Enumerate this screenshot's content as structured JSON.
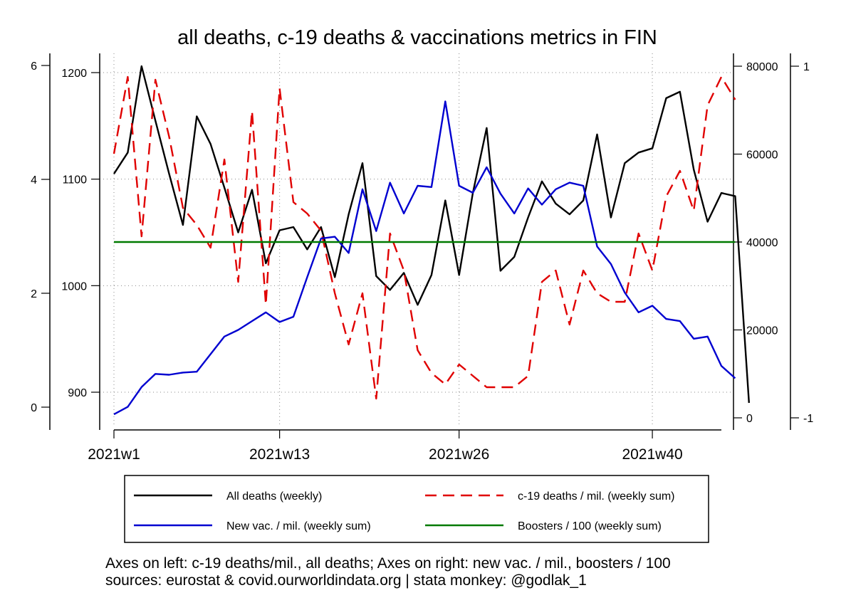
{
  "chart_data": {
    "type": "line",
    "title": "all deaths, c-19 deaths & vaccinations metrics in FIN",
    "x": {
      "start_week": 1,
      "end_week": 45,
      "tick_weeks": [
        1,
        13,
        26,
        40
      ],
      "tick_labels": [
        "2021w1",
        "2021w13",
        "2021w26",
        "2021w40"
      ]
    },
    "axes": {
      "left_outer": {
        "ticks": [
          0,
          2,
          4,
          6
        ],
        "range": [
          0,
          6
        ],
        "note": "c-19 deaths/mil."
      },
      "left_inner": {
        "ticks": [
          900,
          1000,
          1100,
          1200
        ],
        "range": [
          882,
          1208
        ],
        "note": "all deaths"
      },
      "right_inner": {
        "ticks": [
          0,
          20000,
          40000,
          60000,
          80000
        ],
        "range": [
          0,
          80000
        ],
        "note": "new vac. / mil."
      },
      "right_outer": {
        "ticks": [
          -1,
          1
        ],
        "range": [
          -1,
          1
        ],
        "note": "boosters / 100"
      }
    },
    "series": [
      {
        "name": "All deaths (weekly)",
        "axis": "left_inner",
        "color": "#000000",
        "dash": "none",
        "values": [
          1105,
          1125,
          1206,
          1155,
          1105,
          1057,
          1159,
          1133,
          1092,
          1050,
          1090,
          1021,
          1052,
          1055,
          1034,
          1055,
          1008,
          1067,
          1115,
          1009,
          996,
          1012,
          982,
          1010,
          1080,
          1010,
          1087,
          1148,
          1014,
          1027,
          1064,
          1098,
          1077,
          1067,
          1080,
          1142,
          1064,
          1115,
          1125,
          1129,
          1176,
          1182,
          1109,
          1060,
          1087,
          1084,
          890
        ]
      },
      {
        "name": "c-19 deaths / mil. (weekly sum)",
        "axis": "left_outer",
        "color": "#e00000",
        "dash": "dashed",
        "values": [
          4.45,
          5.8,
          3.0,
          5.75,
          4.75,
          3.5,
          3.2,
          2.8,
          4.35,
          2.2,
          5.2,
          1.8,
          5.6,
          3.6,
          3.4,
          3.1,
          2.0,
          1.1,
          2.0,
          0.15,
          3.05,
          2.4,
          1.0,
          0.6,
          0.4,
          0.75,
          0.55,
          0.35,
          0.35,
          0.35,
          0.55,
          2.2,
          2.4,
          1.45,
          2.4,
          2.0,
          1.85,
          1.85,
          3.05,
          2.4,
          3.7,
          4.15,
          3.45,
          5.3,
          5.8,
          5.4
        ]
      },
      {
        "name": "New vac. / mil. (weekly sum)",
        "axis": "right_inner",
        "color": "#0000d0",
        "dash": "none",
        "values": [
          800,
          2500,
          7000,
          10000,
          9800,
          10300,
          10500,
          14500,
          18500,
          20000,
          22000,
          24000,
          21800,
          23000,
          32000,
          40800,
          41200,
          37500,
          52000,
          42500,
          53500,
          46500,
          52800,
          52500,
          72000,
          52800,
          51200,
          57000,
          51000,
          46500,
          52200,
          48500,
          52000,
          53500,
          52800,
          39000,
          35000,
          28500,
          24000,
          25500,
          22500,
          22000,
          18000,
          18500,
          11800,
          9000
        ]
      },
      {
        "name": "Boosters / 100 (weekly sum)",
        "axis": "right_inner",
        "color": "#007a00",
        "dash": "none",
        "values": [
          40000,
          40000,
          40000,
          40000,
          40000,
          40000,
          40000,
          40000,
          40000,
          40000,
          40000,
          40000,
          40000,
          40000,
          40000,
          40000,
          40000,
          40000,
          40000,
          40000,
          40000,
          40000,
          40000,
          40000,
          40000,
          40000,
          40000,
          40000,
          40000,
          40000,
          40000,
          40000,
          40000,
          40000,
          40000,
          40000,
          40000,
          40000,
          40000,
          40000,
          40000,
          40000,
          40000,
          40000,
          40000,
          40000
        ]
      }
    ],
    "grid": true,
    "legend_position": "bottom"
  },
  "notes": {
    "line1": "Axes on left: c-19 deaths/mil., all deaths; Axes on right: new vac. / mil., boosters / 100",
    "line2": "sources: eurostat & covid.ourworldindata.org | stata monkey: @godlak_1"
  }
}
